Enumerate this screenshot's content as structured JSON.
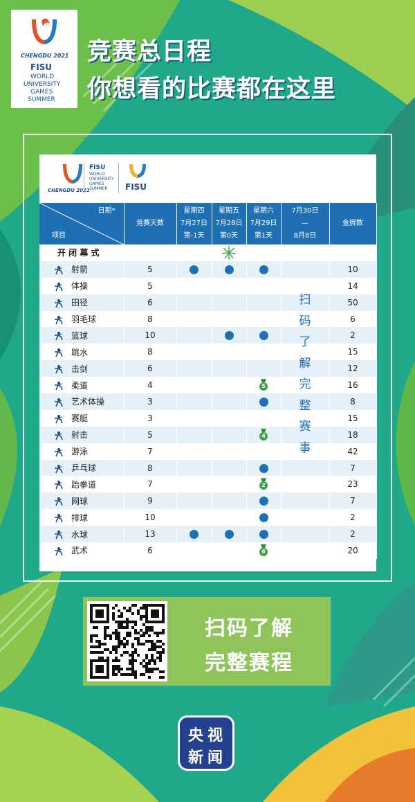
{
  "brand": {
    "city_text": "CHENGDU 2021",
    "org": "FISU",
    "event_lines": [
      "WORLD",
      "UNIVERSITY",
      "GAMES",
      "SUMMER"
    ]
  },
  "headline": {
    "line1": "竞赛总日程",
    "line2": "你想看的比赛都在这里"
  },
  "card_logos": {
    "city_text": "CHENGDU 2021",
    "org": "FISU",
    "event_lines": [
      "WORLD",
      "UNIVERSITY",
      "GAMES",
      "SUMMER"
    ],
    "org_small": "FISU"
  },
  "table": {
    "corner_date": "日期*",
    "corner_item": "项目",
    "col_days": "竞赛天数",
    "col_thu": {
      "week": "星期四",
      "date": "7月27日",
      "day": "第-1天"
    },
    "col_fri": {
      "week": "星期五",
      "date": "7月28日",
      "day": "第0天"
    },
    "col_sat": {
      "week": "星期六",
      "date": "7月29日",
      "day": "第1天"
    },
    "col_range": {
      "start": "7月30日",
      "dash": "—",
      "end": "8月8日"
    },
    "col_medals": "金牌数",
    "ceremony": "开 闭 幕 式",
    "rows": [
      {
        "name": "射箭",
        "days": "5",
        "thu": "dot",
        "fri": "dot",
        "sat": "dot",
        "medals": "10"
      },
      {
        "name": "体操",
        "days": "5",
        "thu": "",
        "fri": "",
        "sat": "",
        "medals": "14"
      },
      {
        "name": "田径",
        "days": "6",
        "thu": "",
        "fri": "",
        "sat": "",
        "medals": "50"
      },
      {
        "name": "羽毛球",
        "days": "8",
        "thu": "",
        "fri": "",
        "sat": "",
        "medals": "6"
      },
      {
        "name": "篮球",
        "days": "10",
        "thu": "",
        "fri": "dot",
        "sat": "dot",
        "medals": "2"
      },
      {
        "name": "跳水",
        "days": "8",
        "thu": "",
        "fri": "",
        "sat": "",
        "medals": "15"
      },
      {
        "name": "击剑",
        "days": "6",
        "thu": "",
        "fri": "",
        "sat": "",
        "medals": "12"
      },
      {
        "name": "柔道",
        "days": "4",
        "thu": "",
        "fri": "",
        "sat": "5",
        "medals": "16"
      },
      {
        "name": "艺术体操",
        "days": "3",
        "thu": "",
        "fri": "",
        "sat": "dot",
        "medals": "8"
      },
      {
        "name": "赛艇",
        "days": "3",
        "thu": "",
        "fri": "",
        "sat": "",
        "medals": "15"
      },
      {
        "name": "射击",
        "days": "5",
        "thu": "",
        "fri": "",
        "sat": "4",
        "medals": "18"
      },
      {
        "name": "游泳",
        "days": "7",
        "thu": "",
        "fri": "",
        "sat": "",
        "medals": "42"
      },
      {
        "name": "乒乓球",
        "days": "8",
        "thu": "",
        "fri": "",
        "sat": "dot",
        "medals": "7"
      },
      {
        "name": "跆拳道",
        "days": "7",
        "thu": "",
        "fri": "",
        "sat": "2",
        "medals": "23"
      },
      {
        "name": "网球",
        "days": "9",
        "thu": "",
        "fri": "",
        "sat": "dot",
        "medals": "7"
      },
      {
        "name": "排球",
        "days": "10",
        "thu": "",
        "fri": "",
        "sat": "dot",
        "medals": "2"
      },
      {
        "name": "水球",
        "days": "13",
        "thu": "dot",
        "fri": "dot",
        "sat": "dot",
        "medals": "2"
      },
      {
        "name": "武术",
        "days": "6",
        "thu": "",
        "fri": "",
        "sat": "6",
        "medals": "20"
      }
    ],
    "vertical_note": [
      "扫",
      "码",
      "了",
      "解",
      "完",
      "整",
      "赛",
      "事"
    ]
  },
  "cta": {
    "line1": "扫码了解",
    "line2": "完整赛程"
  },
  "badge": {
    "chars": [
      "央",
      "视",
      "新",
      "闻"
    ]
  },
  "colors": {
    "background": "#1fa88a",
    "header_blue": "#1f6fb5",
    "lime": "#8fc45a",
    "badge_navy": "#23418f"
  }
}
